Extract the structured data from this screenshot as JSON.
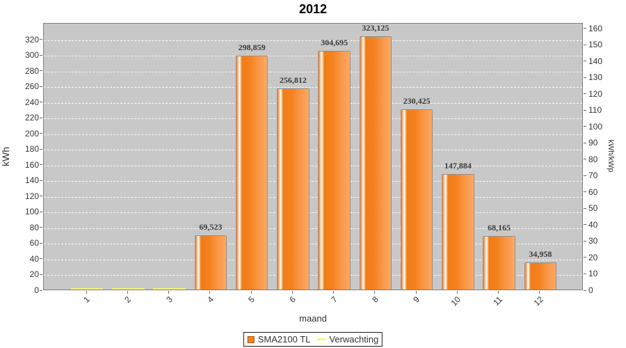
{
  "title": "2012",
  "axes": {
    "left_label": "kWh",
    "right_label": "kWh/kWp",
    "x_label": "maand"
  },
  "legend": {
    "items": [
      {
        "label": "SMA2100 TL",
        "swatch": "bar"
      },
      {
        "label": "Verwachting",
        "swatch": "line"
      }
    ]
  },
  "colors": {
    "bar_main": "#f5821f",
    "bar_border": "#919191",
    "bar_highlight": "#ffffff",
    "expectation_yellow": "#f2f27c",
    "plot_background": "#c8c8c8",
    "gridline": "#ffffff",
    "text": "#333333"
  },
  "chart_data": {
    "type": "bar",
    "title": "2012",
    "xlabel": "maand",
    "ylabel_left": "kWh",
    "ylabel_right": "kWh/kWp",
    "categories": [
      "1",
      "2",
      "3",
      "4",
      "5",
      "6",
      "7",
      "8",
      "9",
      "10",
      "11",
      "12"
    ],
    "series": [
      {
        "name": "SMA2100 TL",
        "type": "bar",
        "values": [
          0,
          0,
          0,
          69.523,
          298.859,
          256.812,
          304.695,
          323.125,
          230.425,
          147.884,
          68.165,
          34.958
        ],
        "value_labels": [
          "",
          "",
          "",
          "69,523",
          "298,859",
          "256,812",
          "304,695",
          "323,125",
          "230,425",
          "147,884",
          "68,165",
          "34,958"
        ]
      },
      {
        "name": "Verwachting",
        "type": "level-line",
        "values": [
          0,
          0,
          0,
          0,
          0,
          0,
          0,
          0,
          0,
          0,
          0,
          0
        ]
      }
    ],
    "ylim_left": [
      0,
      341.3
    ],
    "ylim_right": [
      0,
      163.4
    ],
    "left_ticks": [
      0,
      20,
      40,
      60,
      80,
      100,
      120,
      140,
      160,
      180,
      200,
      220,
      240,
      260,
      280,
      300,
      320
    ],
    "right_ticks": [
      0,
      10,
      20,
      30,
      40,
      50,
      60,
      70,
      80,
      90,
      100,
      110,
      120,
      130,
      140,
      150,
      160
    ],
    "grid": "horizontal-dashed-white",
    "legend_position": "bottom"
  }
}
